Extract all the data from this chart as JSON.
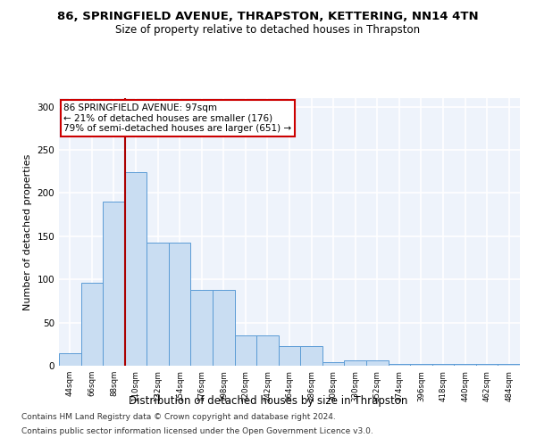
{
  "title": "86, SPRINGFIELD AVENUE, THRAPSTON, KETTERING, NN14 4TN",
  "subtitle": "Size of property relative to detached houses in Thrapston",
  "xlabel": "Distribution of detached houses by size in Thrapston",
  "ylabel": "Number of detached properties",
  "bin_labels": [
    "44sqm",
    "66sqm",
    "88sqm",
    "110sqm",
    "132sqm",
    "154sqm",
    "176sqm",
    "198sqm",
    "220sqm",
    "242sqm",
    "264sqm",
    "286sqm",
    "308sqm",
    "330sqm",
    "352sqm",
    "374sqm",
    "396sqm",
    "418sqm",
    "440sqm",
    "462sqm",
    "484sqm"
  ],
  "bar_heights": [
    14,
    96,
    190,
    224,
    143,
    143,
    88,
    88,
    35,
    35,
    23,
    23,
    4,
    6,
    6,
    2,
    2,
    2,
    2,
    2,
    2
  ],
  "bar_color": "#c9ddf2",
  "bar_edge_color": "#5b9bd5",
  "red_line_color": "#aa0000",
  "annotation_line1": "86 SPRINGFIELD AVENUE: 97sqm",
  "annotation_line2": "← 21% of detached houses are smaller (176)",
  "annotation_line3": "79% of semi-detached houses are larger (651) →",
  "annotation_box_color": "#ffffff",
  "annotation_box_edge": "#cc0000",
  "ylim": [
    0,
    310
  ],
  "yticks": [
    0,
    50,
    100,
    150,
    200,
    250,
    300
  ],
  "footer_line1": "Contains HM Land Registry data © Crown copyright and database right 2024.",
  "footer_line2": "Contains public sector information licensed under the Open Government Licence v3.0.",
  "bg_color": "#eef3fb",
  "grid_color": "#ffffff",
  "title_fontsize": 9.5,
  "subtitle_fontsize": 8.5,
  "xlabel_fontsize": 8.5,
  "ylabel_fontsize": 8,
  "footer_fontsize": 6.5,
  "annotation_fontsize": 7.5
}
